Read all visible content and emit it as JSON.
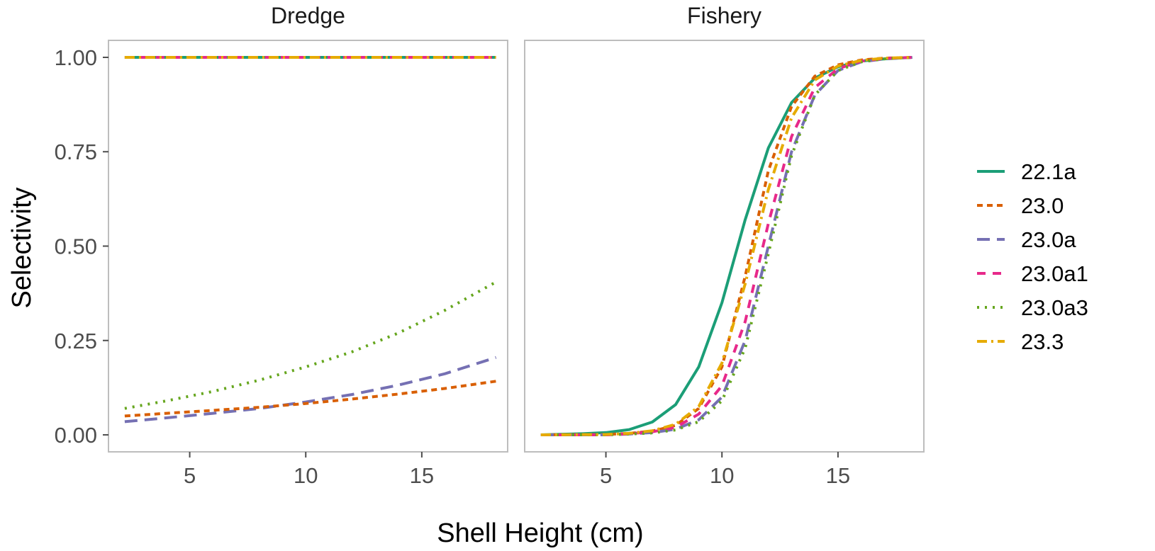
{
  "chart_data": {
    "type": "line",
    "xlabel": "Shell Height (cm)",
    "ylabel": "Selectivity",
    "xlim": [
      1.5,
      18.7
    ],
    "ylim": [
      -0.045,
      1.045
    ],
    "x_ticks": [
      5,
      10,
      15
    ],
    "y_ticks": [
      0,
      0.25,
      0.5,
      0.75,
      1.0
    ],
    "y_tick_labels": [
      "0.00",
      "0.25",
      "0.50",
      "0.75",
      "1.00"
    ],
    "x_tick_labels": [
      "5",
      "10",
      "15"
    ],
    "grid": false,
    "legend_position": "right",
    "legend": [
      {
        "name": "22.1a",
        "color": "#1B9E77",
        "dash": "solid"
      },
      {
        "name": "23.0",
        "color": "#D95F02",
        "dash": "short-dash"
      },
      {
        "name": "23.0a",
        "color": "#7570B3",
        "dash": "long-dash"
      },
      {
        "name": "23.0a1",
        "color": "#E7298A",
        "dash": "dash"
      },
      {
        "name": "23.0a3",
        "color": "#66A61E",
        "dash": "dotted"
      },
      {
        "name": "23.3",
        "color": "#E6AB02",
        "dash": "dash-dot"
      }
    ],
    "panels": [
      {
        "title": "Dredge",
        "series": [
          {
            "name": "22.1a",
            "x": [
              2.2,
              18.2
            ],
            "y": [
              1.0,
              1.0
            ]
          },
          {
            "name": "23.0a1",
            "x": [
              2.2,
              18.2
            ],
            "y": [
              1.0,
              1.0
            ]
          },
          {
            "name": "23.3",
            "x": [
              2.2,
              18.2
            ],
            "y": [
              1.0,
              1.0
            ]
          },
          {
            "name": "23.0a3",
            "x": [
              2.2,
              4,
              6,
              8,
              10,
              12,
              14,
              16,
              18.2
            ],
            "y": [
              0.07,
              0.09,
              0.115,
              0.145,
              0.18,
              0.22,
              0.27,
              0.33,
              0.405
            ]
          },
          {
            "name": "23.0a",
            "x": [
              2.2,
              4,
              6,
              8,
              10,
              12,
              14,
              16,
              18.2
            ],
            "y": [
              0.035,
              0.045,
              0.057,
              0.07,
              0.087,
              0.107,
              0.132,
              0.162,
              0.205
            ]
          },
          {
            "name": "23.0",
            "x": [
              2.2,
              4,
              6,
              8,
              10,
              12,
              14,
              16,
              18.2
            ],
            "y": [
              0.05,
              0.057,
              0.065,
              0.073,
              0.083,
              0.095,
              0.108,
              0.123,
              0.142
            ]
          }
        ]
      },
      {
        "title": "Fishery",
        "series": [
          {
            "name": "22.1a",
            "x": [
              2.2,
              4,
              5,
              6,
              7,
              8,
              9,
              10,
              11,
              12,
              13,
              14,
              15,
              16,
              17,
              18.2
            ],
            "y": [
              0.0,
              0.003,
              0.006,
              0.014,
              0.034,
              0.08,
              0.18,
              0.35,
              0.57,
              0.76,
              0.88,
              0.945,
              0.975,
              0.99,
              0.996,
              1.0
            ]
          },
          {
            "name": "23.0",
            "x": [
              2.2,
              5,
              6,
              7,
              8,
              9,
              10,
              11,
              12,
              13,
              14,
              15,
              16,
              17,
              18.2
            ],
            "y": [
              0.0,
              0.001,
              0.004,
              0.01,
              0.025,
              0.07,
              0.18,
              0.42,
              0.7,
              0.87,
              0.95,
              0.98,
              0.993,
              0.998,
              1.0
            ]
          },
          {
            "name": "23.0a",
            "x": [
              2.2,
              5,
              6,
              7,
              8,
              9,
              10,
              11,
              12,
              13,
              14,
              15,
              16,
              17,
              18.2
            ],
            "y": [
              0.0,
              0.0,
              0.002,
              0.006,
              0.015,
              0.04,
              0.1,
              0.25,
              0.5,
              0.75,
              0.9,
              0.965,
              0.988,
              0.996,
              1.0
            ]
          },
          {
            "name": "23.0a1",
            "x": [
              2.2,
              5,
              6,
              7,
              8,
              9,
              10,
              11,
              12,
              13,
              14,
              15,
              16,
              17,
              18.2
            ],
            "y": [
              0.0,
              0.0,
              0.003,
              0.008,
              0.02,
              0.055,
              0.13,
              0.3,
              0.56,
              0.79,
              0.92,
              0.97,
              0.99,
              0.997,
              1.0
            ]
          },
          {
            "name": "23.0a3",
            "x": [
              2.2,
              5,
              6,
              7,
              8,
              9,
              10,
              11,
              12,
              13,
              14,
              15,
              16,
              17,
              18.2
            ],
            "y": [
              0.0,
              0.0,
              0.002,
              0.005,
              0.013,
              0.035,
              0.09,
              0.23,
              0.48,
              0.74,
              0.9,
              0.965,
              0.988,
              0.996,
              1.0
            ]
          },
          {
            "name": "23.3",
            "x": [
              2.2,
              5,
              6,
              7,
              8,
              9,
              10,
              11,
              12,
              13,
              14,
              15,
              16,
              17,
              18.2
            ],
            "y": [
              0.0,
              0.001,
              0.004,
              0.011,
              0.028,
              0.075,
              0.19,
              0.4,
              0.65,
              0.84,
              0.94,
              0.977,
              0.992,
              0.998,
              1.0
            ]
          }
        ]
      }
    ]
  }
}
